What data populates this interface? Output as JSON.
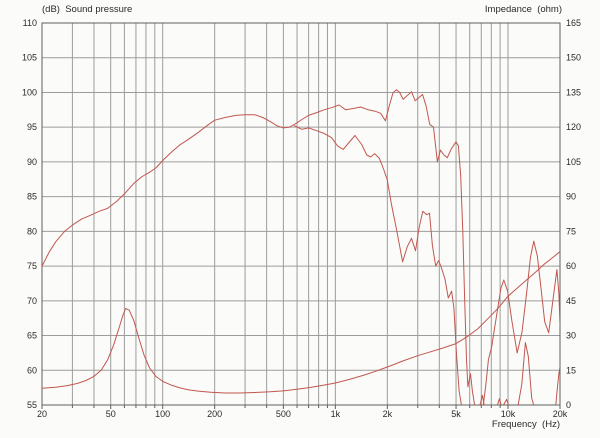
{
  "page": {
    "background": "#fbfbf9"
  },
  "chart_data": {
    "type": "line",
    "grid": true,
    "legend": false,
    "colors": {
      "curve": "#c1574f",
      "grid": "#9c9c9c",
      "border": "#5f5f5f",
      "text": "#2a2a2a",
      "background": "#fbfbf9"
    },
    "y_left": {
      "label": "(dB)  Sound pressure",
      "min": 55,
      "max": 110,
      "step": 5,
      "tick_labels": [
        "110",
        "105",
        "100",
        "95",
        "90",
        "85",
        "80",
        "75",
        "70",
        "65",
        "60",
        "55"
      ]
    },
    "y_right": {
      "label": "Impedance  (ohm)",
      "min": 0,
      "max": 165,
      "step": 15,
      "tick_labels": [
        "165",
        "150",
        "135",
        "120",
        "105",
        "90",
        "75",
        "60",
        "45",
        "30",
        "15",
        "0"
      ]
    },
    "x_axis": {
      "label": "Frequency  (Hz)",
      "scale": "log",
      "min": 20,
      "max": 20000,
      "tick_labels": [
        "20",
        "50",
        "100",
        "200",
        "500",
        "1k",
        "2k",
        "5k",
        "10k",
        "20k"
      ],
      "tick_values": [
        20,
        50,
        100,
        200,
        500,
        1000,
        2000,
        5000,
        10000,
        20000
      ],
      "minor_gridlines": [
        20,
        30,
        40,
        50,
        60,
        70,
        80,
        90,
        100,
        200,
        300,
        400,
        500,
        600,
        700,
        800,
        900,
        1000,
        2000,
        3000,
        4000,
        5000,
        6000,
        7000,
        8000,
        9000,
        10000,
        20000
      ]
    },
    "series": [
      {
        "name": "spl-on-axis",
        "axis": "left",
        "unit": "dB",
        "points": [
          [
            20,
            75
          ],
          [
            22,
            77
          ],
          [
            24,
            78.5
          ],
          [
            27,
            80
          ],
          [
            30,
            80.9
          ],
          [
            34,
            81.8
          ],
          [
            38,
            82.3
          ],
          [
            43,
            82.9
          ],
          [
            48,
            83.3
          ],
          [
            54,
            84.3
          ],
          [
            60,
            85.4
          ],
          [
            68,
            86.9
          ],
          [
            76,
            87.9
          ],
          [
            84,
            88.5
          ],
          [
            92,
            89.2
          ],
          [
            100,
            90.2
          ],
          [
            110,
            91.2
          ],
          [
            125,
            92.4
          ],
          [
            140,
            93.2
          ],
          [
            160,
            94.2
          ],
          [
            180,
            95.2
          ],
          [
            200,
            96
          ],
          [
            230,
            96.4
          ],
          [
            265,
            96.7
          ],
          [
            300,
            96.8
          ],
          [
            340,
            96.8
          ],
          [
            380,
            96.4
          ],
          [
            420,
            95.8
          ],
          [
            460,
            95.2
          ],
          [
            500,
            94.9
          ],
          [
            540,
            95.0
          ],
          [
            580,
            95.4
          ],
          [
            640,
            96.1
          ],
          [
            700,
            96.7
          ],
          [
            780,
            97.1
          ],
          [
            860,
            97.5
          ],
          [
            950,
            97.8
          ],
          [
            1050,
            98.2
          ],
          [
            1150,
            97.5
          ],
          [
            1280,
            97.7
          ],
          [
            1400,
            97.9
          ],
          [
            1550,
            97.5
          ],
          [
            1700,
            97.3
          ],
          [
            1830,
            97.0
          ],
          [
            1950,
            95.9
          ],
          [
            2060,
            98.2
          ],
          [
            2160,
            100.0
          ],
          [
            2260,
            100.4
          ],
          [
            2360,
            100.0
          ],
          [
            2470,
            99.0
          ],
          [
            2620,
            99.6
          ],
          [
            2760,
            100.1
          ],
          [
            2900,
            98.8
          ],
          [
            3060,
            99.3
          ],
          [
            3200,
            99.7
          ],
          [
            3360,
            98.0
          ],
          [
            3520,
            95.4
          ],
          [
            3700,
            95.0
          ],
          [
            3900,
            90.0
          ],
          [
            4060,
            91.7
          ],
          [
            4250,
            91.0
          ],
          [
            4450,
            90.6
          ],
          [
            4700,
            91.9
          ],
          [
            5000,
            92.9
          ],
          [
            5160,
            92.3
          ],
          [
            5320,
            88.0
          ],
          [
            5470,
            80.0
          ],
          [
            5600,
            71.0
          ],
          [
            5750,
            61.5
          ],
          [
            5860,
            57.6
          ],
          [
            6060,
            59.5
          ],
          [
            6220,
            57.0
          ],
          [
            6420,
            54.8
          ],
          [
            7150,
            54.5
          ],
          [
            7450,
            58.0
          ],
          [
            7700,
            61.5
          ],
          [
            8050,
            63.5
          ],
          [
            8600,
            68.0
          ],
          [
            9100,
            71.8
          ],
          [
            9450,
            73.0
          ],
          [
            9950,
            71.4
          ],
          [
            10550,
            67.0
          ],
          [
            11300,
            62.5
          ],
          [
            12050,
            65.5
          ],
          [
            12800,
            71.0
          ],
          [
            13500,
            76.3
          ],
          [
            14100,
            78.6
          ],
          [
            14800,
            76.4
          ],
          [
            15600,
            71.3
          ],
          [
            16300,
            67.0
          ],
          [
            17200,
            65.4
          ],
          [
            18300,
            70.5
          ],
          [
            19200,
            74.5
          ],
          [
            19700,
            71.0
          ],
          [
            20000,
            66.5
          ]
        ]
      },
      {
        "name": "spl-off-axis",
        "axis": "left",
        "unit": "dB",
        "points": [
          [
            580,
            95.2
          ],
          [
            640,
            94.7
          ],
          [
            700,
            94.9
          ],
          [
            780,
            94.5
          ],
          [
            860,
            94.1
          ],
          [
            950,
            93.5
          ],
          [
            1030,
            92.3
          ],
          [
            1110,
            91.8
          ],
          [
            1200,
            92.8
          ],
          [
            1300,
            93.8
          ],
          [
            1420,
            92.5
          ],
          [
            1520,
            91.0
          ],
          [
            1600,
            90.7
          ],
          [
            1690,
            91.2
          ],
          [
            1800,
            90.5
          ],
          [
            1900,
            89.0
          ],
          [
            2000,
            87.4
          ],
          [
            2110,
            84.0
          ],
          [
            2260,
            80.3
          ],
          [
            2450,
            75.6
          ],
          [
            2610,
            77.8
          ],
          [
            2760,
            79.0
          ],
          [
            2910,
            77.2
          ],
          [
            3060,
            80.6
          ],
          [
            3210,
            82.9
          ],
          [
            3380,
            82.4
          ],
          [
            3510,
            82.6
          ],
          [
            3650,
            78.0
          ],
          [
            3810,
            75.0
          ],
          [
            3960,
            75.8
          ],
          [
            4110,
            74.8
          ],
          [
            4310,
            73.2
          ],
          [
            4510,
            70.4
          ],
          [
            4710,
            71.4
          ],
          [
            4860,
            69.0
          ],
          [
            5010,
            63.0
          ],
          [
            5210,
            57.0
          ],
          [
            5410,
            54.5
          ],
          [
            6810,
            54.5
          ],
          [
            7110,
            56.4
          ],
          [
            7310,
            54.7
          ],
          [
            8610,
            54.7
          ],
          [
            8910,
            55.9
          ],
          [
            9210,
            54.6
          ],
          [
            9810,
            55.8
          ],
          [
            10210,
            54.5
          ],
          [
            11410,
            54.8
          ],
          [
            12010,
            58.0
          ],
          [
            12610,
            64.0
          ],
          [
            13110,
            62.0
          ],
          [
            13710,
            56.0
          ],
          [
            14310,
            54.4
          ],
          [
            18810,
            54.4
          ],
          [
            19310,
            57.5
          ],
          [
            19710,
            59.5
          ],
          [
            20000,
            60.5
          ]
        ]
      },
      {
        "name": "impedance",
        "axis": "right",
        "unit": "ohm",
        "points": [
          [
            20,
            7.2
          ],
          [
            24,
            7.7
          ],
          [
            28,
            8.4
          ],
          [
            32,
            9.3
          ],
          [
            36,
            10.6
          ],
          [
            40,
            12.4
          ],
          [
            44,
            15.0
          ],
          [
            48,
            19.5
          ],
          [
            52,
            26.0
          ],
          [
            56,
            33.5
          ],
          [
            59,
            39.0
          ],
          [
            61,
            41.7
          ],
          [
            64,
            41.0
          ],
          [
            68,
            36.5
          ],
          [
            73,
            28.5
          ],
          [
            78,
            21.5
          ],
          [
            84,
            16.0
          ],
          [
            91,
            12.5
          ],
          [
            100,
            10.2
          ],
          [
            112,
            8.6
          ],
          [
            126,
            7.4
          ],
          [
            143,
            6.5
          ],
          [
            163,
            5.9
          ],
          [
            190,
            5.5
          ],
          [
            230,
            5.2
          ],
          [
            280,
            5.2
          ],
          [
            340,
            5.4
          ],
          [
            420,
            5.7
          ],
          [
            500,
            6.1
          ],
          [
            600,
            6.8
          ],
          [
            720,
            7.6
          ],
          [
            850,
            8.5
          ],
          [
            1000,
            9.5
          ],
          [
            1200,
            11.0
          ],
          [
            1450,
            12.8
          ],
          [
            1750,
            14.8
          ],
          [
            2100,
            17.0
          ],
          [
            2500,
            19.2
          ],
          [
            3000,
            21.3
          ],
          [
            3500,
            22.8
          ],
          [
            4200,
            24.6
          ],
          [
            5000,
            26.5
          ],
          [
            5800,
            29.5
          ],
          [
            6700,
            33.0
          ],
          [
            7700,
            37.5
          ],
          [
            8800,
            42.0
          ],
          [
            10000,
            47.0
          ],
          [
            11300,
            50.5
          ],
          [
            12800,
            54.0
          ],
          [
            14500,
            57.5
          ],
          [
            16300,
            61.0
          ],
          [
            18000,
            63.5
          ],
          [
            20000,
            66.2
          ]
        ]
      }
    ]
  }
}
